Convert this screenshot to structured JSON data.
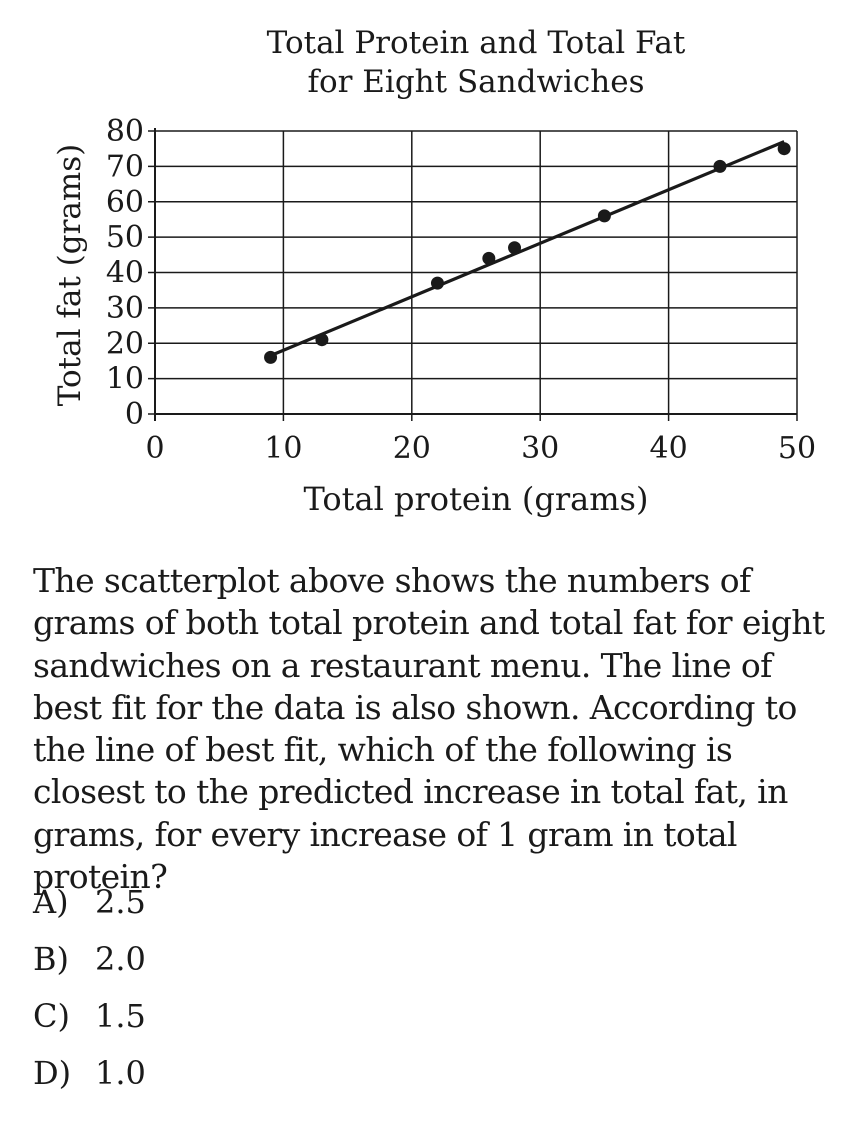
{
  "chart_data": {
    "type": "scatter",
    "title": [
      "Total Protein and Total Fat",
      "for Eight Sandwiches"
    ],
    "xlabel": "Total protein (grams)",
    "ylabel": "Total fat (grams)",
    "xlim": [
      0,
      50
    ],
    "ylim": [
      0,
      80
    ],
    "xticks": [
      0,
      10,
      20,
      30,
      40,
      50
    ],
    "yticks": [
      0,
      10,
      20,
      30,
      40,
      50,
      60,
      70,
      80
    ],
    "grid": true,
    "points": [
      {
        "x": 9,
        "y": 16
      },
      {
        "x": 13,
        "y": 21
      },
      {
        "x": 22,
        "y": 37
      },
      {
        "x": 26,
        "y": 44
      },
      {
        "x": 28,
        "y": 47
      },
      {
        "x": 35,
        "y": 56
      },
      {
        "x": 44,
        "y": 70
      },
      {
        "x": 49,
        "y": 75
      }
    ],
    "best_fit_line": {
      "x_start": 9,
      "y_start": 16.5,
      "x_end": 49,
      "y_end": 77
    }
  },
  "question": {
    "text": "The scatterplot above shows the numbers of grams of both total protein and total fat for eight sandwiches on a restaurant menu. The line of best fit for the data is also shown. According to the line of best fit, which of the following is closest to the predicted increase in total fat, in grams, for every increase of 1 gram in total protein?",
    "choices": [
      {
        "letter": "A)",
        "value": "2.5"
      },
      {
        "letter": "B)",
        "value": "2.0"
      },
      {
        "letter": "C)",
        "value": "1.5"
      },
      {
        "letter": "D)",
        "value": "1.0"
      }
    ]
  }
}
